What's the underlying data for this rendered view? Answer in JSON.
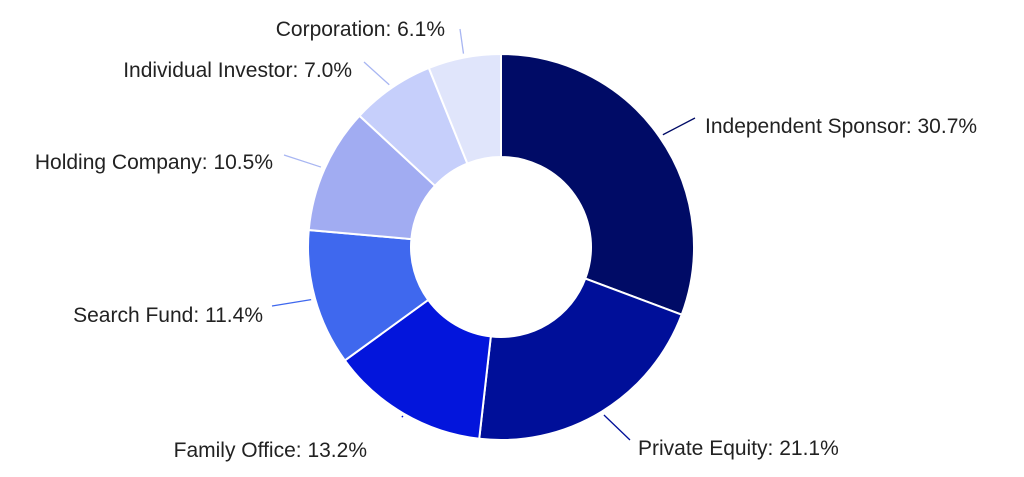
{
  "chart_data": {
    "type": "pie",
    "variant": "donut",
    "title": "",
    "legend": "none",
    "slices": [
      {
        "label": "Independent Sponsor",
        "value": 30.7,
        "display": "Independent Sponsor: 30.7%",
        "color": "#000b66"
      },
      {
        "label": "Private Equity",
        "value": 21.1,
        "display": "Private Equity: 21.1%",
        "color": "#000f99"
      },
      {
        "label": "Family Office",
        "value": 13.2,
        "display": "Family Office: 13.2%",
        "color": "#0315dc"
      },
      {
        "label": "Search Fund",
        "value": 11.4,
        "display": "Search Fund: 11.4%",
        "color": "#3f68ee"
      },
      {
        "label": "Holding Company",
        "value": 10.5,
        "display": "Holding Company: 10.5%",
        "color": "#a1acf2"
      },
      {
        "label": "Individual Investor",
        "value": 7.0,
        "display": "Individual Investor: 7.0%",
        "color": "#c6cffb"
      },
      {
        "label": "Corporation",
        "value": 6.1,
        "display": "Corporation: 6.1%",
        "color": "#e0e5fb"
      }
    ]
  }
}
